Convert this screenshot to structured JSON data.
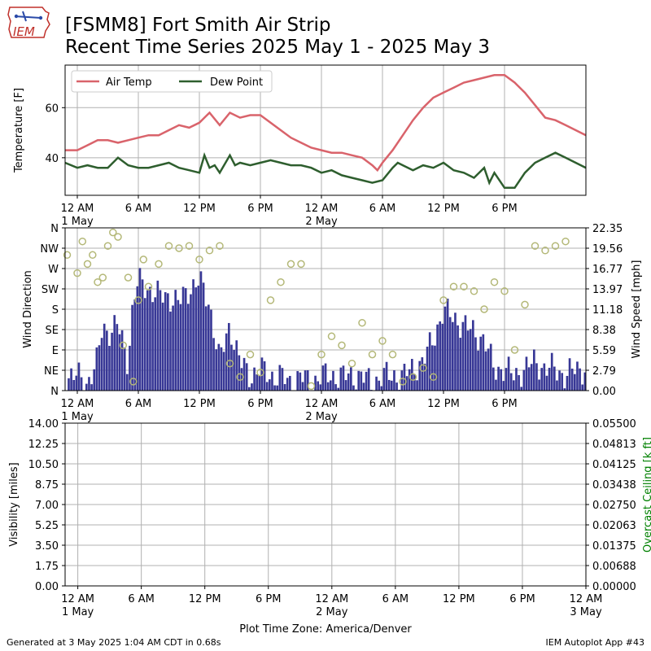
{
  "header": {
    "title_line1": "[FSMM8] Fort Smith Air Strip",
    "title_line2": "Recent Time Series 2025 May 1 - 2025 May 3",
    "logo_text": "IEM"
  },
  "footer": {
    "generated": "Generated at 3 May 2025 1:04 AM CDT in 0.68s",
    "app": "IEM Autoplot App #43"
  },
  "colors": {
    "air_temp": "#d9636b",
    "dew_point": "#2e5e2e",
    "wind_speed": "#383896",
    "wind_direction": "#b4b878",
    "ceiling_label": "#008000",
    "grid": "#b0b0b0"
  },
  "chart_data": [
    {
      "type": "line",
      "ylabel": "Temperature [F]",
      "ylim": [
        25,
        77
      ],
      "yticks": [
        "40",
        "60"
      ],
      "ytick_values": [
        40,
        60
      ],
      "xlim_hours": [
        -1.2,
        50
      ],
      "xticks": [
        {
          "hour": 0,
          "label": "12 AM",
          "sub": "1 May"
        },
        {
          "hour": 6,
          "label": "6 AM",
          "sub": ""
        },
        {
          "hour": 12,
          "label": "12 PM",
          "sub": ""
        },
        {
          "hour": 18,
          "label": "6 PM",
          "sub": ""
        },
        {
          "hour": 24,
          "label": "12 AM",
          "sub": "2 May"
        },
        {
          "hour": 30,
          "label": "6 AM",
          "sub": ""
        },
        {
          "hour": 36,
          "label": "12 PM",
          "sub": ""
        },
        {
          "hour": 42,
          "label": "6 PM",
          "sub": ""
        }
      ],
      "legend": "top-left",
      "grid": true,
      "series": [
        {
          "name": "Air Temp",
          "x": [
            -1.2,
            0,
            1,
            2,
            3,
            4,
            5,
            6,
            7,
            8,
            9,
            10,
            11,
            12,
            12.5,
            13,
            14,
            15,
            16,
            17,
            18,
            19,
            20,
            21,
            22,
            23,
            24,
            25,
            26,
            27,
            28,
            29,
            29.5,
            30,
            31,
            32,
            33,
            34,
            35,
            36,
            37,
            38,
            39,
            40,
            41,
            42,
            43,
            44,
            45,
            46,
            47,
            48,
            49,
            50
          ],
          "values": [
            43,
            43,
            45,
            47,
            47,
            46,
            47,
            48,
            49,
            49,
            51,
            53,
            52,
            54,
            56,
            58,
            53,
            58,
            56,
            57,
            57,
            54,
            51,
            48,
            46,
            44,
            43,
            42,
            42,
            41,
            40,
            37,
            35,
            38,
            43,
            49,
            55,
            60,
            64,
            66,
            68,
            70,
            71,
            72,
            73,
            73,
            70,
            66,
            61,
            56,
            55,
            53,
            51,
            49
          ]
        },
        {
          "name": "Dew Point",
          "x": [
            -1.2,
            0,
            1,
            2,
            3,
            4,
            5,
            6,
            7,
            8,
            9,
            10,
            11,
            12,
            12.5,
            13,
            13.5,
            14,
            15,
            15.5,
            16,
            17,
            18,
            19,
            20,
            21,
            22,
            23,
            24,
            25,
            26,
            27,
            28,
            29,
            30,
            31,
            31.5,
            32,
            33,
            34,
            35,
            36,
            37,
            38,
            39,
            40,
            40.5,
            41,
            42,
            43,
            44,
            45,
            46,
            47,
            48,
            49,
            50
          ],
          "values": [
            38,
            36,
            37,
            36,
            36,
            40,
            37,
            36,
            36,
            37,
            38,
            36,
            35,
            34,
            41,
            36,
            37,
            34,
            41,
            37,
            38,
            37,
            38,
            39,
            38,
            37,
            37,
            36,
            34,
            35,
            33,
            32,
            31,
            30,
            31,
            36,
            38,
            37,
            35,
            37,
            36,
            38,
            35,
            34,
            32,
            36,
            30,
            34,
            28,
            28,
            34,
            38,
            40,
            42,
            40,
            38,
            36
          ]
        }
      ]
    },
    {
      "type": "bar",
      "ylabel": "Wind Direction",
      "ylabel_right": "Wind Speed [mph]",
      "direction_ticks": [
        "N",
        "NE",
        "E",
        "SE",
        "S",
        "SW",
        "W",
        "NW",
        "N"
      ],
      "speed_ticks": [
        "0.00",
        "2.79",
        "5.59",
        "8.38",
        "11.18",
        "13.97",
        "16.77",
        "19.56",
        "22.35"
      ],
      "speed_lim": [
        0,
        22.35
      ],
      "direction_lim": [
        0,
        360
      ],
      "xlim_hours": [
        -1.2,
        50
      ],
      "grid": true,
      "series": [
        {
          "name": "Wind Speed",
          "x": [
            -1,
            0,
            1,
            2,
            2.5,
            3,
            4,
            5,
            5.5,
            6,
            7,
            8,
            9,
            10,
            11,
            12,
            13,
            14,
            15,
            16,
            17,
            18,
            19,
            20,
            21,
            22,
            23,
            24,
            25,
            26,
            27,
            28,
            29,
            30,
            31,
            32,
            33,
            34,
            35,
            36,
            37,
            38,
            39,
            40,
            41,
            42,
            43,
            44,
            45,
            46,
            47,
            48,
            49
          ],
          "values": [
            2,
            2,
            1,
            4,
            9,
            8,
            9,
            4,
            12,
            15,
            14,
            13,
            13,
            12,
            14,
            15,
            12,
            4,
            9,
            4,
            2,
            3,
            2,
            2,
            1,
            2,
            1,
            2,
            2,
            2,
            2,
            2,
            1,
            2,
            2,
            2,
            3,
            4,
            7,
            11,
            10,
            9,
            8,
            7,
            3,
            3,
            2,
            3,
            4,
            3,
            3,
            2,
            3
          ]
        },
        {
          "name": "Wind Direction",
          "x": [
            -1,
            0,
            0.5,
            1,
            1.5,
            2,
            2.5,
            3,
            3.5,
            4,
            4.5,
            5,
            5.5,
            6,
            6.5,
            7,
            8,
            9,
            10,
            11,
            12,
            13,
            14,
            15,
            16,
            17,
            18,
            19,
            20,
            21,
            22,
            23,
            24,
            25,
            26,
            27,
            28,
            29,
            30,
            31,
            32,
            33,
            34,
            35,
            36,
            37,
            38,
            39,
            40,
            41,
            42,
            43,
            44,
            45,
            46,
            47,
            48
          ],
          "values": [
            300,
            260,
            330,
            280,
            300,
            240,
            250,
            320,
            350,
            340,
            100,
            250,
            20,
            200,
            290,
            230,
            280,
            320,
            315,
            320,
            290,
            310,
            320,
            60,
            30,
            80,
            40,
            200,
            240,
            280,
            280,
            10,
            80,
            120,
            100,
            60,
            150,
            80,
            110,
            80,
            20,
            30,
            50,
            30,
            200,
            230,
            230,
            220,
            180,
            240,
            220,
            90,
            190,
            320,
            310,
            320,
            330
          ]
        }
      ]
    },
    {
      "type": "line",
      "ylabel": "Visibility [miles]",
      "ylabel_right": "Overcast Ceiling [k ft]",
      "yticks": [
        "0.00",
        "1.75",
        "3.50",
        "5.25",
        "7.00",
        "8.75",
        "10.50",
        "12.25",
        "14.00"
      ],
      "yticks_right": [
        "0.00000",
        "0.00688",
        "0.01375",
        "0.02063",
        "0.02750",
        "0.03438",
        "0.04125",
        "0.04813",
        "0.05500"
      ],
      "ylim": [
        0,
        14
      ],
      "ylim_right": [
        0,
        0.055
      ],
      "xlim_hours": [
        -1.2,
        48
      ],
      "xticks": [
        {
          "hour": 0,
          "label": "12 AM",
          "sub": "1 May"
        },
        {
          "hour": 6,
          "label": "6 AM",
          "sub": ""
        },
        {
          "hour": 12,
          "label": "12 PM",
          "sub": ""
        },
        {
          "hour": 18,
          "label": "6 PM",
          "sub": ""
        },
        {
          "hour": 24,
          "label": "12 AM",
          "sub": "2 May"
        },
        {
          "hour": 30,
          "label": "6 AM",
          "sub": ""
        },
        {
          "hour": 36,
          "label": "12 PM",
          "sub": ""
        },
        {
          "hour": 42,
          "label": "6 PM",
          "sub": ""
        },
        {
          "hour": 48,
          "label": "12 AM",
          "sub": "3 May"
        }
      ],
      "xlabel": "Plot Time Zone: America/Denver",
      "grid": true,
      "series": []
    }
  ]
}
